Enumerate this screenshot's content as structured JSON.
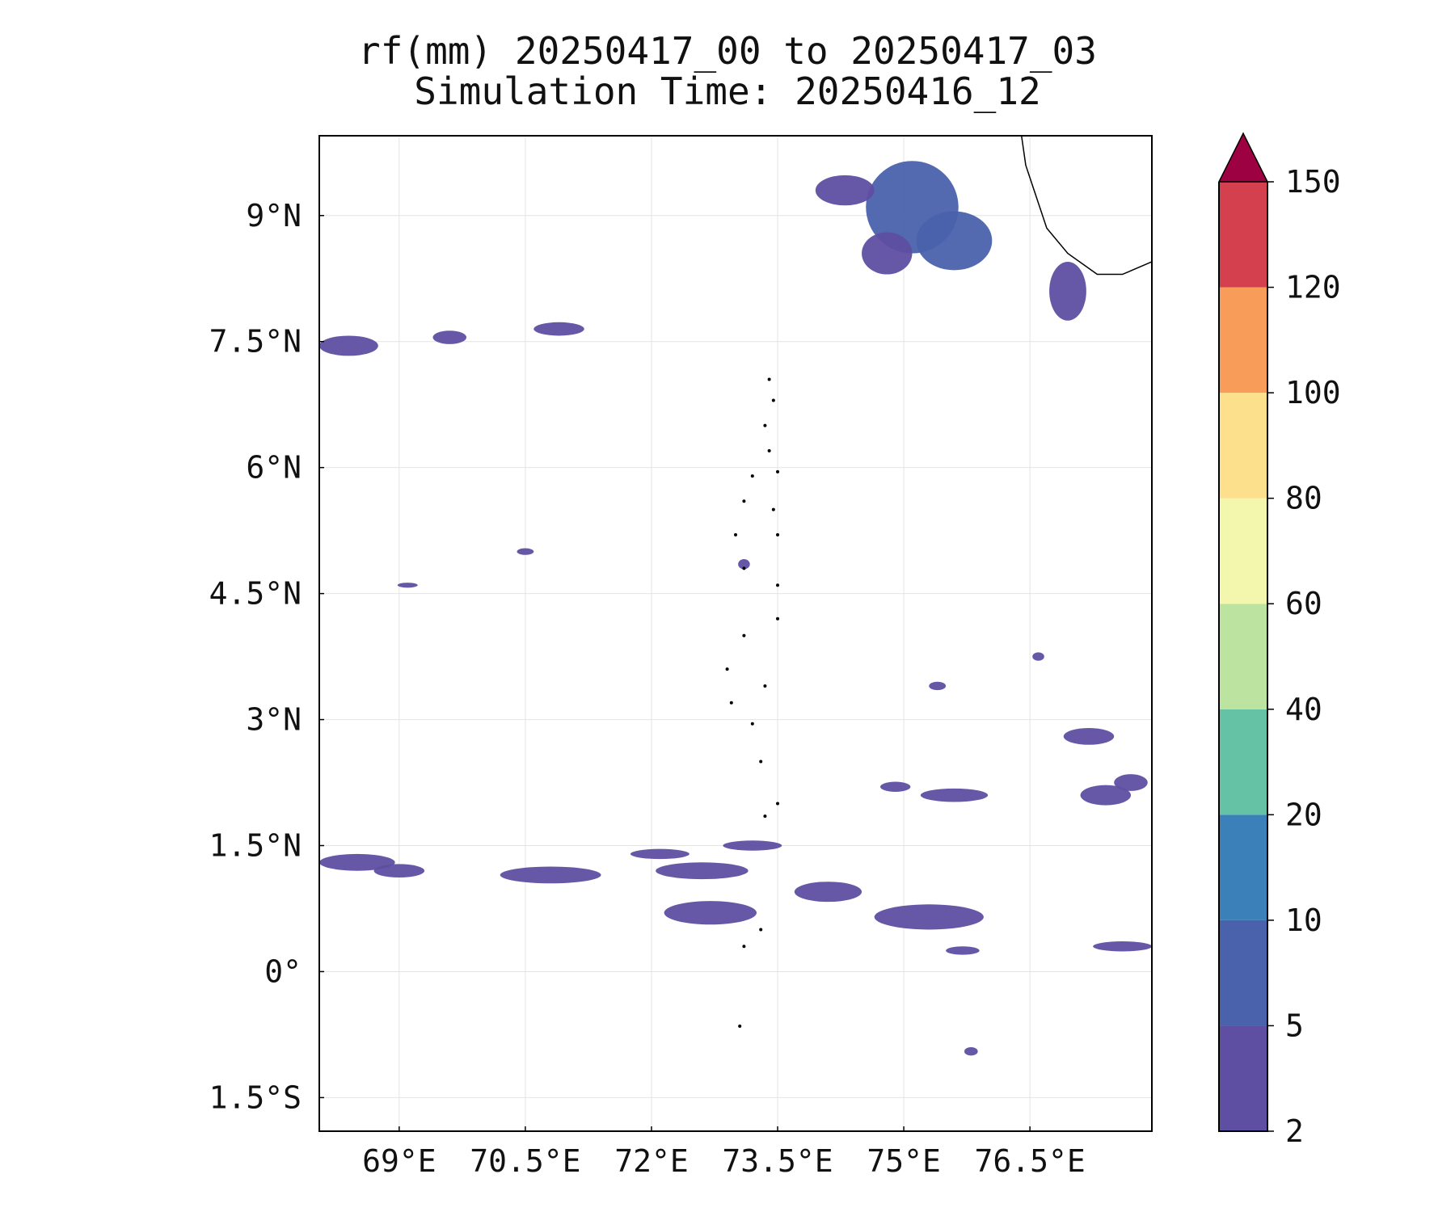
{
  "figure": {
    "title_line1": "rf(mm) 20250417_00 to 20250417_03",
    "title_line2": "Simulation Time: 20250416_12"
  },
  "chart_data": {
    "type": "heatmap",
    "variable": "rf(mm)",
    "x": {
      "tick_values": [
        69,
        70.5,
        72,
        73.5,
        75,
        76.5
      ],
      "tick_labels": [
        "69°E",
        "70.5°E",
        "72°E",
        "73.5°E",
        "75°E",
        "76.5°E"
      ],
      "range": [
        68.05,
        77.95
      ]
    },
    "y": {
      "tick_values": [
        -1.5,
        0,
        1.5,
        3,
        4.5,
        6,
        7.5,
        9
      ],
      "tick_labels": [
        "1.5°S",
        "0°",
        "1.5°N",
        "3°N",
        "4.5°N",
        "6°N",
        "7.5°N",
        "9°N"
      ],
      "range": [
        -1.9,
        9.95
      ]
    },
    "grid": true,
    "colorbar": {
      "levels": [
        2,
        5,
        10,
        20,
        40,
        60,
        80,
        100,
        120,
        150
      ],
      "level_labels": [
        "2",
        "5",
        "10",
        "20",
        "40",
        "60",
        "80",
        "100",
        "120",
        "150"
      ],
      "colors": [
        "#5e4fa2",
        "#4a61ac",
        "#3b80b9",
        "#66c2a5",
        "#bce4a0",
        "#f2f7ad",
        "#fde08b",
        "#f89d59",
        "#d4404e"
      ],
      "extend_color": "#9e0142",
      "extend": "max"
    },
    "rain_regions": [
      {
        "lon": 75.1,
        "lat": 9.1,
        "rx": 0.55,
        "ry": 0.55,
        "value": 6
      },
      {
        "lon": 75.6,
        "lat": 8.7,
        "rx": 0.45,
        "ry": 0.35,
        "value": 6
      },
      {
        "lon": 74.3,
        "lat": 9.3,
        "rx": 0.35,
        "ry": 0.18,
        "value": 4
      },
      {
        "lon": 74.8,
        "lat": 8.55,
        "rx": 0.3,
        "ry": 0.25,
        "value": 4
      },
      {
        "lon": 76.95,
        "lat": 8.1,
        "rx": 0.22,
        "ry": 0.35,
        "value": 4
      },
      {
        "lon": 68.4,
        "lat": 7.45,
        "rx": 0.35,
        "ry": 0.12,
        "value": 3
      },
      {
        "lon": 70.9,
        "lat": 7.65,
        "rx": 0.3,
        "ry": 0.08,
        "value": 3
      },
      {
        "lon": 69.6,
        "lat": 7.55,
        "rx": 0.2,
        "ry": 0.08,
        "value": 3
      },
      {
        "lon": 68.5,
        "lat": 1.3,
        "rx": 0.45,
        "ry": 0.1,
        "value": 4
      },
      {
        "lon": 69.0,
        "lat": 1.2,
        "rx": 0.3,
        "ry": 0.08,
        "value": 3
      },
      {
        "lon": 70.8,
        "lat": 1.15,
        "rx": 0.6,
        "ry": 0.1,
        "value": 3
      },
      {
        "lon": 72.1,
        "lat": 1.4,
        "rx": 0.35,
        "ry": 0.06,
        "value": 3
      },
      {
        "lon": 72.6,
        "lat": 1.2,
        "rx": 0.55,
        "ry": 0.1,
        "value": 3
      },
      {
        "lon": 73.2,
        "lat": 1.5,
        "rx": 0.35,
        "ry": 0.06,
        "value": 3
      },
      {
        "lon": 72.7,
        "lat": 0.7,
        "rx": 0.55,
        "ry": 0.14,
        "value": 3
      },
      {
        "lon": 74.1,
        "lat": 0.95,
        "rx": 0.4,
        "ry": 0.12,
        "value": 3
      },
      {
        "lon": 75.3,
        "lat": 0.65,
        "rx": 0.65,
        "ry": 0.15,
        "value": 4
      },
      {
        "lon": 75.6,
        "lat": 2.1,
        "rx": 0.4,
        "ry": 0.08,
        "value": 3
      },
      {
        "lon": 74.9,
        "lat": 2.2,
        "rx": 0.18,
        "ry": 0.06,
        "value": 3
      },
      {
        "lon": 77.2,
        "lat": 2.8,
        "rx": 0.3,
        "ry": 0.1,
        "value": 3
      },
      {
        "lon": 77.4,
        "lat": 2.1,
        "rx": 0.3,
        "ry": 0.12,
        "value": 3
      },
      {
        "lon": 77.7,
        "lat": 2.25,
        "rx": 0.2,
        "ry": 0.1,
        "value": 3
      },
      {
        "lon": 77.6,
        "lat": 0.3,
        "rx": 0.35,
        "ry": 0.06,
        "value": 3
      },
      {
        "lon": 75.7,
        "lat": 0.25,
        "rx": 0.2,
        "ry": 0.05,
        "value": 3
      },
      {
        "lon": 70.5,
        "lat": 5.0,
        "rx": 0.1,
        "ry": 0.04,
        "value": 3
      },
      {
        "lon": 69.1,
        "lat": 4.6,
        "rx": 0.12,
        "ry": 0.03,
        "value": 3
      },
      {
        "lon": 75.4,
        "lat": 3.4,
        "rx": 0.1,
        "ry": 0.05,
        "value": 3
      },
      {
        "lon": 76.6,
        "lat": 3.75,
        "rx": 0.07,
        "ry": 0.05,
        "value": 3
      },
      {
        "lon": 73.1,
        "lat": 4.85,
        "rx": 0.07,
        "ry": 0.06,
        "value": 3
      },
      {
        "lon": 75.8,
        "lat": -0.95,
        "rx": 0.08,
        "ry": 0.05,
        "value": 3
      }
    ],
    "coastline": {
      "india": [
        [
          76.4,
          9.95
        ],
        [
          76.45,
          9.6
        ],
        [
          76.55,
          9.3
        ],
        [
          76.7,
          8.85
        ],
        [
          76.95,
          8.55
        ],
        [
          77.3,
          8.3
        ],
        [
          77.6,
          8.3
        ],
        [
          77.95,
          8.45
        ]
      ],
      "maldives": [
        [
          73.4,
          7.05
        ],
        [
          73.45,
          6.8
        ],
        [
          73.35,
          6.5
        ],
        [
          73.4,
          6.2
        ],
        [
          73.2,
          5.9
        ],
        [
          73.1,
          5.6
        ],
        [
          73.5,
          5.95
        ],
        [
          73.45,
          5.5
        ],
        [
          73.5,
          5.2
        ],
        [
          73.0,
          5.2
        ],
        [
          73.1,
          4.8
        ],
        [
          73.5,
          4.6
        ],
        [
          73.5,
          4.2
        ],
        [
          73.1,
          4.0
        ],
        [
          72.9,
          3.6
        ],
        [
          72.95,
          3.2
        ],
        [
          73.35,
          3.4
        ],
        [
          73.2,
          2.95
        ],
        [
          73.3,
          2.5
        ],
        [
          73.5,
          2.0
        ],
        [
          73.35,
          1.85
        ],
        [
          73.3,
          0.5
        ],
        [
          73.1,
          0.3
        ],
        [
          73.05,
          -0.65
        ]
      ]
    }
  }
}
